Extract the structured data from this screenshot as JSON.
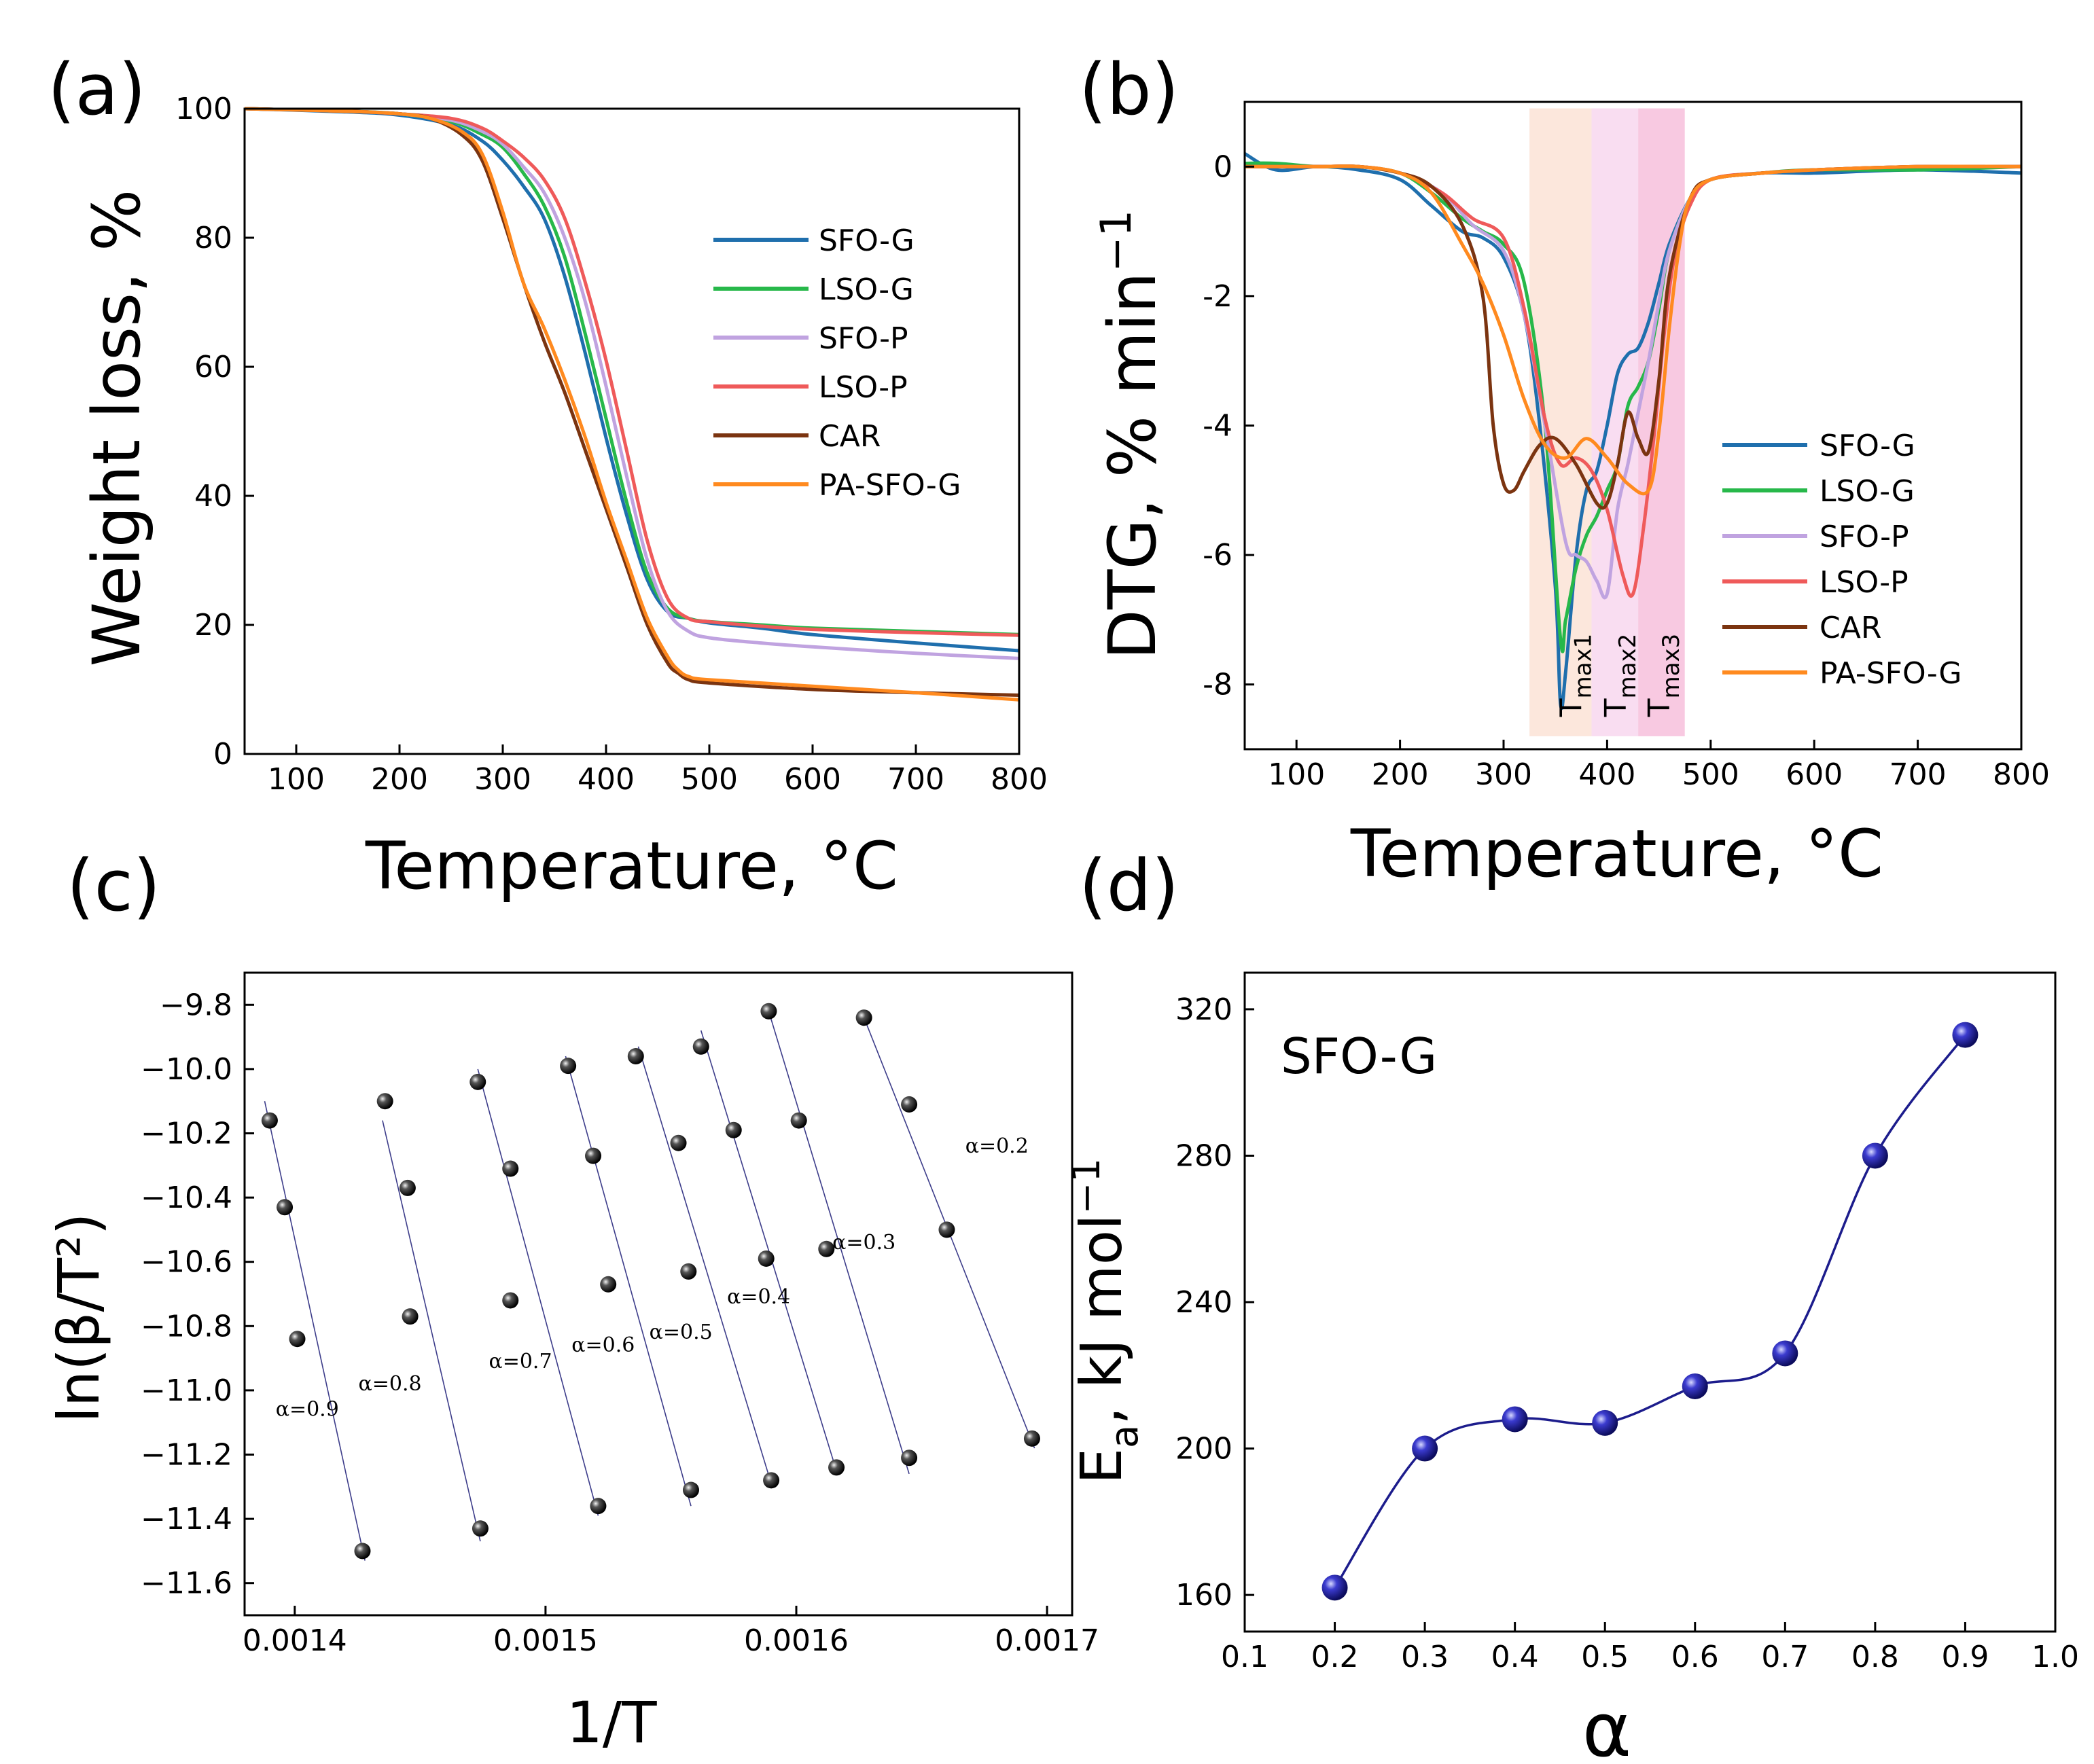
{
  "panels": {
    "a": {
      "label": "(a)"
    },
    "b": {
      "label": "(b)"
    },
    "c": {
      "label": "(c)"
    },
    "d": {
      "label": "(d)"
    }
  },
  "chart_data": [
    {
      "id": "a",
      "type": "line",
      "xlabel": "Temperature, °C",
      "ylabel": "Weight loss, %",
      "xlim": [
        50,
        800
      ],
      "ylim": [
        0,
        100
      ],
      "xticks": [
        100,
        200,
        300,
        400,
        500,
        600,
        700,
        800
      ],
      "yticks": [
        0,
        20,
        40,
        60,
        80,
        100
      ],
      "legend_position": "right",
      "series": [
        {
          "name": "SFO-G",
          "color": "#1f6fad",
          "x": [
            50,
            150,
            200,
            250,
            280,
            300,
            320,
            340,
            360,
            380,
            400,
            420,
            440,
            460,
            480,
            500,
            550,
            600,
            700,
            800
          ],
          "y": [
            100,
            99.5,
            99,
            97.5,
            95,
            92,
            88,
            83,
            74,
            62,
            49,
            37,
            27,
            22,
            21,
            20.3,
            19.5,
            18.5,
            17.2,
            16
          ]
        },
        {
          "name": "LSO-G",
          "color": "#27b84a",
          "x": [
            50,
            150,
            200,
            250,
            280,
            300,
            320,
            340,
            360,
            380,
            400,
            420,
            440,
            460,
            480,
            500,
            550,
            600,
            700,
            800
          ],
          "y": [
            100,
            99.6,
            99.2,
            98,
            96,
            94,
            90,
            85,
            77,
            65,
            52,
            39,
            28,
            22.5,
            21,
            20.5,
            20,
            19.5,
            19,
            18.5
          ]
        },
        {
          "name": "SFO-P",
          "color": "#c0a3e0",
          "x": [
            50,
            150,
            200,
            250,
            280,
            300,
            320,
            340,
            360,
            380,
            400,
            420,
            440,
            460,
            480,
            500,
            550,
            600,
            700,
            800
          ],
          "y": [
            100,
            99.6,
            99.2,
            98.2,
            96.5,
            94.5,
            91,
            87,
            80,
            70,
            57,
            43,
            30,
            22,
            19,
            18,
            17.2,
            16.6,
            15.6,
            14.8
          ]
        },
        {
          "name": "LSO-P",
          "color": "#ef5a5a",
          "x": [
            50,
            150,
            200,
            250,
            280,
            300,
            320,
            340,
            360,
            380,
            400,
            420,
            440,
            460,
            480,
            500,
            550,
            600,
            700,
            800
          ],
          "y": [
            100,
            99.6,
            99.2,
            98.5,
            97,
            95,
            92.5,
            89,
            83,
            73,
            61,
            47,
            33,
            24,
            21,
            20.5,
            19.8,
            19.3,
            18.8,
            18.4
          ]
        },
        {
          "name": "CAR",
          "color": "#7b3410",
          "x": [
            50,
            150,
            200,
            230,
            260,
            280,
            300,
            320,
            340,
            360,
            380,
            400,
            420,
            440,
            460,
            470,
            480,
            500,
            600,
            700,
            800
          ],
          "y": [
            100,
            99.6,
            99.2,
            98.5,
            96,
            92,
            83,
            73,
            64,
            56,
            47,
            38,
            29,
            20,
            14,
            12.5,
            11.5,
            11,
            10,
            9.5,
            9.1
          ]
        },
        {
          "name": "PA-SFO-G",
          "color": "#ff8a1f",
          "x": [
            50,
            150,
            200,
            230,
            260,
            280,
            300,
            320,
            340,
            360,
            380,
            400,
            420,
            440,
            460,
            470,
            480,
            500,
            600,
            700,
            800
          ],
          "y": [
            100,
            99.6,
            99.2,
            98.5,
            96.5,
            93,
            84,
            73,
            66,
            58,
            49,
            39,
            30,
            21,
            15,
            13,
            12,
            11.5,
            10.5,
            9.5,
            8.4
          ]
        }
      ]
    },
    {
      "id": "b",
      "type": "line",
      "xlabel": "Temperature, °C",
      "ylabel": "DTG, % min",
      "ylabel_sup": "−1",
      "xlim": [
        50,
        800
      ],
      "ylim": [
        -9,
        1
      ],
      "xticks": [
        100,
        200,
        300,
        400,
        500,
        600,
        700,
        800
      ],
      "yticks": [
        0,
        -2,
        -4,
        -6,
        -8
      ],
      "legend_position": "bottom-right",
      "bands": [
        {
          "x": [
            325,
            385
          ],
          "color": "#fbe3d6"
        },
        {
          "x": [
            385,
            430
          ],
          "color": "#f8d7ef"
        },
        {
          "x": [
            430,
            475
          ],
          "color": "#f7bfdc"
        }
      ],
      "annotations": [
        {
          "text": "T",
          "sub": "max1",
          "x": 375,
          "y": -8.5
        },
        {
          "text": "T",
          "sub": "max2",
          "x": 418,
          "y": -8.5
        },
        {
          "text": "T",
          "sub": "max3",
          "x": 460,
          "y": -8.5
        }
      ],
      "series": [
        {
          "name": "SFO-G",
          "color": "#1f6fad",
          "x": [
            50,
            80,
            120,
            160,
            200,
            230,
            260,
            280,
            300,
            320,
            335,
            350,
            355,
            360,
            370,
            380,
            390,
            400,
            410,
            420,
            430,
            440,
            450,
            460,
            480,
            500,
            550,
            600,
            700,
            800
          ],
          "y": [
            0.2,
            -0.05,
            0,
            -0.05,
            -0.2,
            -0.6,
            -1.0,
            -1.1,
            -1.4,
            -2.3,
            -4.0,
            -6.5,
            -8.3,
            -7.8,
            -6.0,
            -5.0,
            -4.7,
            -4.0,
            -3.2,
            -2.9,
            -2.8,
            -2.4,
            -1.8,
            -1.2,
            -0.5,
            -0.2,
            -0.1,
            -0.1,
            -0.05,
            -0.1
          ]
        },
        {
          "name": "LSO-G",
          "color": "#27b84a",
          "x": [
            50,
            80,
            120,
            160,
            200,
            230,
            260,
            280,
            300,
            320,
            340,
            355,
            360,
            370,
            380,
            390,
            400,
            410,
            420,
            430,
            440,
            450,
            460,
            480,
            500,
            550,
            600,
            700,
            800
          ],
          "y": [
            0.05,
            0.05,
            0,
            0,
            -0.1,
            -0.4,
            -0.8,
            -1.0,
            -1.2,
            -1.8,
            -4.0,
            -7.3,
            -7.0,
            -6.2,
            -5.7,
            -5.4,
            -5.0,
            -4.6,
            -3.7,
            -3.4,
            -3.0,
            -2.2,
            -1.3,
            -0.5,
            -0.2,
            -0.1,
            -0.05,
            -0.05,
            0
          ]
        },
        {
          "name": "SFO-P",
          "color": "#c0a3e0",
          "x": [
            50,
            80,
            120,
            160,
            200,
            240,
            270,
            300,
            320,
            340,
            360,
            370,
            380,
            390,
            400,
            410,
            420,
            430,
            440,
            450,
            460,
            480,
            500,
            550,
            600,
            700,
            800
          ],
          "y": [
            0,
            0,
            0,
            0,
            -0.1,
            -0.4,
            -0.9,
            -1.3,
            -2.3,
            -4.0,
            -5.8,
            -6.0,
            -6.1,
            -6.4,
            -6.6,
            -5.3,
            -4.6,
            -3.8,
            -3.0,
            -2.1,
            -1.3,
            -0.5,
            -0.2,
            -0.1,
            -0.05,
            0,
            0
          ]
        },
        {
          "name": "LSO-P",
          "color": "#ef5a5a",
          "x": [
            50,
            80,
            120,
            160,
            200,
            240,
            270,
            300,
            320,
            340,
            355,
            370,
            385,
            400,
            415,
            425,
            435,
            445,
            455,
            465,
            480,
            500,
            550,
            600,
            700,
            800
          ],
          "y": [
            0,
            0,
            0,
            0,
            -0.1,
            -0.4,
            -0.8,
            -1.1,
            -2.2,
            -3.9,
            -4.6,
            -4.5,
            -4.7,
            -5.3,
            -6.3,
            -6.6,
            -5.6,
            -4.2,
            -2.6,
            -1.4,
            -0.6,
            -0.2,
            -0.1,
            -0.05,
            0,
            0
          ]
        },
        {
          "name": "CAR",
          "color": "#7b3410",
          "x": [
            50,
            80,
            120,
            160,
            200,
            230,
            260,
            280,
            290,
            300,
            310,
            320,
            335,
            350,
            370,
            390,
            400,
            410,
            420,
            430,
            440,
            450,
            460,
            480,
            500,
            550,
            600,
            700,
            800
          ],
          "y": [
            0,
            0,
            0,
            0,
            -0.1,
            -0.3,
            -0.9,
            -2.0,
            -4.0,
            -4.9,
            -5.0,
            -4.7,
            -4.3,
            -4.2,
            -4.6,
            -5.2,
            -5.2,
            -4.6,
            -3.8,
            -4.2,
            -4.4,
            -3.3,
            -1.7,
            -0.5,
            -0.2,
            -0.1,
            -0.05,
            0,
            0
          ]
        },
        {
          "name": "PA-SFO-G",
          "color": "#ff8a1f",
          "x": [
            50,
            80,
            120,
            160,
            200,
            230,
            260,
            280,
            300,
            320,
            340,
            360,
            380,
            400,
            420,
            440,
            450,
            460,
            470,
            480,
            500,
            550,
            600,
            700,
            800
          ],
          "y": [
            0,
            0,
            0,
            0,
            -0.1,
            -0.4,
            -1.2,
            -1.8,
            -2.6,
            -3.6,
            -4.3,
            -4.5,
            -4.2,
            -4.5,
            -4.9,
            -5.0,
            -4.1,
            -2.5,
            -1.2,
            -0.5,
            -0.2,
            -0.1,
            -0.05,
            0,
            0
          ]
        }
      ]
    },
    {
      "id": "c",
      "type": "scatter",
      "xlabel": "1/T",
      "ylabel": "ln(β/T²)",
      "xlim": [
        0.00138,
        0.00171
      ],
      "ylim": [
        -11.7,
        -9.7
      ],
      "xticks": [
        0.0014,
        0.0015,
        0.0016,
        0.0017
      ],
      "xtick_labels": [
        "0.0014",
        "0.0015",
        "0.0016",
        "0.0017"
      ],
      "yticks": [
        -9.8,
        -10.0,
        -10.2,
        -10.4,
        -10.6,
        -10.8,
        -11.0,
        -11.2,
        -11.4,
        -11.6
      ],
      "ytick_labels": [
        "−9.8",
        "−10.0",
        "−10.2",
        "−10.4",
        "−10.6",
        "−10.8",
        "−11.0",
        "−11.2",
        "−11.4",
        "−11.6"
      ],
      "series": [
        {
          "name": "α=0.9",
          "label_x": 0.001405,
          "label_y": -11.08,
          "x": [
            0.00139,
            0.001396,
            0.001401,
            0.001427
          ],
          "y": [
            -10.16,
            -10.43,
            -10.84,
            -11.5
          ],
          "fit_x": [
            0.001388,
            0.001428
          ],
          "fit_y": [
            -10.1,
            -11.53
          ]
        },
        {
          "name": "α=0.8",
          "label_x": 0.001438,
          "label_y": -11.0,
          "x": [
            0.001436,
            0.001445,
            0.001446,
            0.001474
          ],
          "y": [
            -10.1,
            -10.37,
            -10.77,
            -11.43
          ],
          "fit_x": [
            0.001435,
            0.001474
          ],
          "fit_y": [
            -10.16,
            -11.47
          ]
        },
        {
          "name": "α=0.7",
          "label_x": 0.00149,
          "label_y": -10.93,
          "x": [
            0.001473,
            0.001486,
            0.001486,
            0.001521
          ],
          "y": [
            -10.04,
            -10.31,
            -10.72,
            -11.36
          ],
          "fit_x": [
            0.001473,
            0.001521
          ],
          "fit_y": [
            -10.0,
            -11.39
          ]
        },
        {
          "name": "α=0.6",
          "label_x": 0.001523,
          "label_y": -10.88,
          "x": [
            0.001509,
            0.001519,
            0.001525,
            0.001558
          ],
          "y": [
            -9.99,
            -10.27,
            -10.67,
            -11.31
          ],
          "fit_x": [
            0.001508,
            0.001558
          ],
          "fit_y": [
            -9.96,
            -11.36
          ]
        },
        {
          "name": "α=0.5",
          "label_x": 0.001554,
          "label_y": -10.84,
          "x": [
            0.001536,
            0.001553,
            0.001557,
            0.00159
          ],
          "y": [
            -9.96,
            -10.23,
            -10.63,
            -11.28
          ],
          "fit_x": [
            0.001537,
            0.00159
          ],
          "fit_y": [
            -9.93,
            -11.29
          ]
        },
        {
          "name": "α=0.4",
          "label_x": 0.001585,
          "label_y": -10.73,
          "x": [
            0.001562,
            0.001575,
            0.001588,
            0.001616
          ],
          "y": [
            -9.93,
            -10.19,
            -10.59,
            -11.24
          ],
          "fit_x": [
            0.001562,
            0.001616
          ],
          "fit_y": [
            -9.88,
            -11.25
          ]
        },
        {
          "name": "α=0.3",
          "label_x": 0.001627,
          "label_y": -10.56,
          "x": [
            0.001589,
            0.001601,
            0.001612,
            0.001645
          ],
          "y": [
            -9.82,
            -10.16,
            -10.56,
            -11.21
          ],
          "fit_x": [
            0.001589,
            0.001645
          ],
          "fit_y": [
            -9.82,
            -11.26
          ]
        },
        {
          "name": "α=0.2",
          "label_x": 0.00168,
          "label_y": -10.26,
          "x": [
            0.001627,
            0.001645,
            0.00166,
            0.001694
          ],
          "y": [
            -9.84,
            -10.11,
            -10.5,
            -11.15
          ],
          "fit_x": [
            0.001627,
            0.001695
          ],
          "fit_y": [
            -9.84,
            -11.18
          ]
        }
      ]
    },
    {
      "id": "d",
      "type": "scatter",
      "title": "SFO-G",
      "xlabel": "α",
      "ylabel": "E",
      "ylabel_sub": "a",
      "ylabel_rest": ", kJ mol",
      "ylabel_sup": "−1",
      "xlim": [
        0.1,
        1.0
      ],
      "ylim": [
        150,
        330
      ],
      "xticks": [
        0.1,
        0.2,
        0.3,
        0.4,
        0.5,
        0.6,
        0.7,
        0.8,
        0.9,
        1.0
      ],
      "xtick_labels": [
        "0.1",
        "0.2",
        "0.3",
        "0.4",
        "0.5",
        "0.6",
        "0.7",
        "0.8",
        "0.9",
        "1.0"
      ],
      "yticks": [
        160,
        200,
        240,
        280,
        320
      ],
      "marker_color": "#1c1c8c",
      "x": [
        0.2,
        0.3,
        0.4,
        0.5,
        0.6,
        0.7,
        0.8,
        0.9
      ],
      "y": [
        162,
        200,
        208,
        207,
        217,
        226,
        280,
        313
      ]
    }
  ]
}
